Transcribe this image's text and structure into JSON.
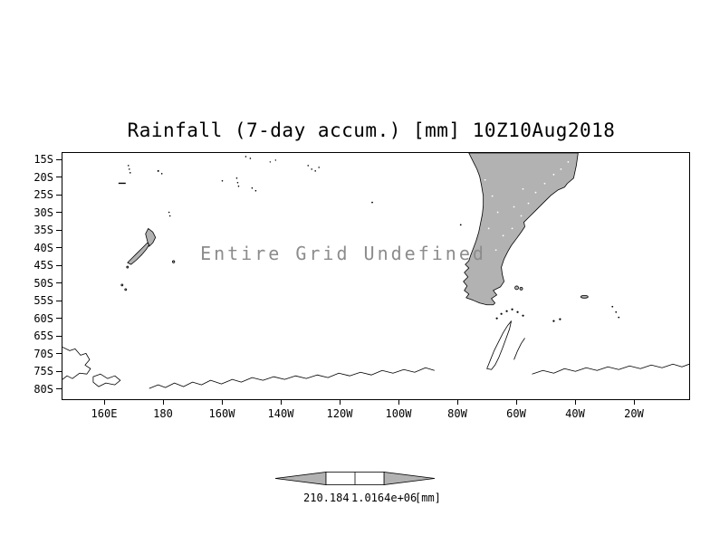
{
  "page": {
    "background": "#ffffff"
  },
  "chart_data": {
    "type": "heatmap",
    "title": "Rainfall (7-day accum.) [mm] 10Z10Aug2018",
    "status_message": "Entire Grid Undefined",
    "x_ticks": [
      "160E",
      "180",
      "160W",
      "140W",
      "120W",
      "100W",
      "80W",
      "60W",
      "40W",
      "20W"
    ],
    "y_ticks": [
      "15S",
      "20S",
      "25S",
      "30S",
      "35S",
      "40S",
      "45S",
      "50S",
      "55S",
      "60S",
      "65S",
      "70S",
      "75S",
      "80S"
    ],
    "xlabel": "",
    "ylabel": "",
    "grid": false,
    "values": null,
    "note": "rainfall field is undefined over the entire grid; only basemap coastlines are drawn",
    "map_regions_visible": [
      "South America",
      "New Zealand",
      "Antarctica",
      "Falkland Islands",
      "South Georgia",
      "South Pacific islands"
    ],
    "colorbar": {
      "position": "bottom",
      "tick_labels": [
        "210.184",
        "1.0164e+06"
      ],
      "unit": "[mm]"
    },
    "colors": {
      "land_fill": "#b2b2b2",
      "coastline": "#000000",
      "message_text": "#8c8c8c"
    }
  }
}
